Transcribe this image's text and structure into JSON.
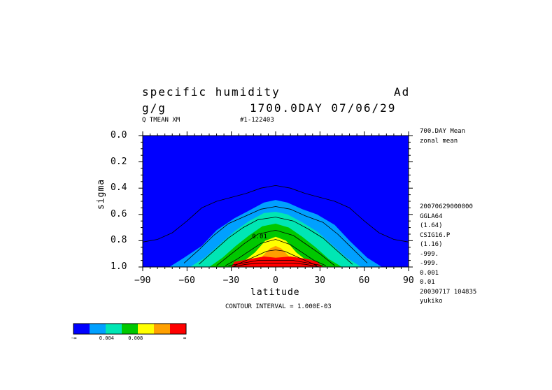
{
  "header": {
    "title_left": "specific humidity",
    "title_right": "Ad",
    "units": "g/g",
    "time_label": "1700.0DAY 07/06/29",
    "variable_label": "Q TMEAN XM",
    "run_label": "#1-122403"
  },
  "side_info": {
    "top_lines": [
      "700.DAY Mean",
      "zonal mean"
    ],
    "bottom_lines": [
      "20070629000000",
      "GGLA64",
      "(1.64)",
      "CSIG16.P",
      "(1.16)",
      "-999.",
      "-999.",
      "0.001",
      "0.01",
      "20030717 104835",
      "yukiko"
    ]
  },
  "footer": {
    "contour_interval": "CONTOUR INTERVAL = 1.000E-03"
  },
  "colorbar": {
    "colors": [
      "#0000ff",
      "#00a0ff",
      "#00e6b4",
      "#00c800",
      "#ffff00",
      "#ffa000",
      "#ff0000"
    ],
    "labels": [
      "-∞",
      "0.004",
      "0.008",
      "∞"
    ]
  },
  "chart_data": {
    "type": "contour",
    "title": "specific humidity",
    "xlabel": "latitude",
    "ylabel": "sigma",
    "xlim": [
      -90,
      90
    ],
    "ylim": [
      1.0,
      0.0
    ],
    "x_ticks": [
      -90,
      -60,
      -30,
      0,
      30,
      60,
      90
    ],
    "y_ticks": [
      0.0,
      0.2,
      0.4,
      0.6,
      0.8,
      1.0
    ],
    "x_tick_labels": [
      "−90",
      "−60",
      "−30",
      "0",
      "30",
      "60",
      "90"
    ],
    "y_tick_labels": [
      "0.0",
      "0.2",
      "0.4",
      "0.6",
      "0.8",
      "1.0"
    ],
    "contour_interval": 0.001,
    "inline_labels": [
      {
        "lat": -16,
        "sigma": 0.9,
        "text": "0.01"
      }
    ],
    "filled_levels": [
      {
        "level": 0.002,
        "color": "#00a0ff",
        "boundary": [
          [
            -90,
            1.0
          ],
          [
            -72,
            1.0
          ],
          [
            -62,
            0.93
          ],
          [
            -50,
            0.84
          ],
          [
            -40,
            0.72
          ],
          [
            -28,
            0.63
          ],
          [
            -18,
            0.57
          ],
          [
            -8,
            0.51
          ],
          [
            0,
            0.49
          ],
          [
            8,
            0.51
          ],
          [
            18,
            0.56
          ],
          [
            28,
            0.6
          ],
          [
            40,
            0.68
          ],
          [
            50,
            0.8
          ],
          [
            62,
            0.93
          ],
          [
            72,
            1.0
          ],
          [
            90,
            1.0
          ]
        ]
      },
      {
        "level": 0.004,
        "color": "#00e6b4",
        "boundary": [
          [
            -90,
            1.0
          ],
          [
            -58,
            1.0
          ],
          [
            -48,
            0.93
          ],
          [
            -38,
            0.83
          ],
          [
            -28,
            0.73
          ],
          [
            -18,
            0.65
          ],
          [
            -8,
            0.59
          ],
          [
            0,
            0.58
          ],
          [
            8,
            0.6
          ],
          [
            18,
            0.66
          ],
          [
            28,
            0.73
          ],
          [
            38,
            0.83
          ],
          [
            48,
            0.93
          ],
          [
            58,
            1.0
          ],
          [
            90,
            1.0
          ]
        ]
      },
      {
        "level": 0.006,
        "color": "#00c800",
        "boundary": [
          [
            -90,
            1.0
          ],
          [
            -45,
            1.0
          ],
          [
            -36,
            0.93
          ],
          [
            -27,
            0.84
          ],
          [
            -18,
            0.76
          ],
          [
            -9,
            0.69
          ],
          [
            0,
            0.67
          ],
          [
            9,
            0.7
          ],
          [
            18,
            0.77
          ],
          [
            27,
            0.85
          ],
          [
            36,
            0.94
          ],
          [
            45,
            1.0
          ],
          [
            90,
            1.0
          ]
        ]
      },
      {
        "level": 0.008,
        "color": "#ffff00",
        "boundary": [
          [
            -90,
            1.0
          ],
          [
            -30,
            1.0
          ],
          [
            -22,
            0.96
          ],
          [
            -14,
            0.89
          ],
          [
            -7,
            0.8
          ],
          [
            0,
            0.77
          ],
          [
            7,
            0.8
          ],
          [
            14,
            0.89
          ],
          [
            22,
            0.96
          ],
          [
            30,
            1.0
          ],
          [
            90,
            1.0
          ]
        ]
      },
      {
        "level": 0.01,
        "color": "#ffa000",
        "boundary": [
          [
            -90,
            1.0
          ],
          [
            -24,
            1.0
          ],
          [
            -18,
            0.97
          ],
          [
            -10,
            0.93
          ],
          [
            -4,
            0.86
          ],
          [
            0,
            0.84
          ],
          [
            4,
            0.86
          ],
          [
            10,
            0.93
          ],
          [
            18,
            0.97
          ],
          [
            24,
            1.0
          ],
          [
            90,
            1.0
          ]
        ]
      },
      {
        "level": 0.012,
        "color": "#ff0000",
        "boundary": [
          [
            -90,
            1.0
          ],
          [
            -30,
            1.0
          ],
          [
            -28,
            0.96
          ],
          [
            -18,
            0.94
          ],
          [
            -8,
            0.92
          ],
          [
            0,
            0.93
          ],
          [
            10,
            0.92
          ],
          [
            22,
            0.94
          ],
          [
            28,
            0.96
          ],
          [
            32,
            1.0
          ],
          [
            90,
            1.0
          ]
        ]
      }
    ],
    "line_contours": [
      [
        [
          -90,
          0.81
        ],
        [
          -80,
          0.79
        ],
        [
          -70,
          0.74
        ],
        [
          -60,
          0.65
        ],
        [
          -50,
          0.55
        ],
        [
          -40,
          0.5
        ],
        [
          -30,
          0.47
        ],
        [
          -20,
          0.44
        ],
        [
          -10,
          0.4
        ],
        [
          0,
          0.38
        ],
        [
          10,
          0.4
        ],
        [
          20,
          0.44
        ],
        [
          30,
          0.47
        ],
        [
          40,
          0.5
        ],
        [
          50,
          0.55
        ],
        [
          60,
          0.65
        ],
        [
          70,
          0.74
        ],
        [
          80,
          0.79
        ],
        [
          90,
          0.81
        ]
      ],
      [
        [
          -62,
          0.97
        ],
        [
          -52,
          0.87
        ],
        [
          -42,
          0.76
        ],
        [
          -32,
          0.67
        ],
        [
          -20,
          0.61
        ],
        [
          -10,
          0.56
        ],
        [
          0,
          0.54
        ],
        [
          10,
          0.56
        ],
        [
          20,
          0.61
        ],
        [
          32,
          0.66
        ],
        [
          42,
          0.75
        ],
        [
          52,
          0.86
        ],
        [
          62,
          0.97
        ]
      ],
      [
        [
          -52,
          0.98
        ],
        [
          -42,
          0.88
        ],
        [
          -32,
          0.78
        ],
        [
          -22,
          0.7
        ],
        [
          -12,
          0.64
        ],
        [
          0,
          0.62
        ],
        [
          12,
          0.65
        ],
        [
          22,
          0.71
        ],
        [
          32,
          0.78
        ],
        [
          42,
          0.88
        ],
        [
          52,
          0.98
        ]
      ],
      [
        [
          -40,
          0.99
        ],
        [
          -30,
          0.9
        ],
        [
          -21,
          0.82
        ],
        [
          -12,
          0.75
        ],
        [
          0,
          0.72
        ],
        [
          12,
          0.76
        ],
        [
          21,
          0.83
        ],
        [
          30,
          0.9
        ],
        [
          40,
          0.99
        ]
      ],
      [
        [
          -34,
          0.99
        ],
        [
          -26,
          0.94
        ],
        [
          -18,
          0.88
        ],
        [
          -10,
          0.82
        ],
        [
          0,
          0.79
        ],
        [
          10,
          0.83
        ],
        [
          18,
          0.89
        ],
        [
          26,
          0.95
        ],
        [
          34,
          0.99
        ]
      ],
      [
        [
          -28,
          0.99
        ],
        [
          -20,
          0.95
        ],
        [
          -12,
          0.91
        ],
        [
          -6,
          0.88
        ],
        [
          0,
          0.87
        ],
        [
          6,
          0.88
        ],
        [
          12,
          0.91
        ],
        [
          20,
          0.95
        ],
        [
          28,
          0.99
        ]
      ],
      [
        [
          -32,
          0.99
        ],
        [
          -22,
          0.97
        ],
        [
          -12,
          0.95
        ],
        [
          0,
          0.95
        ],
        [
          12,
          0.95
        ],
        [
          22,
          0.97
        ],
        [
          32,
          0.99
        ]
      ],
      [
        [
          -30,
          1.0
        ],
        [
          -20,
          0.98
        ],
        [
          -10,
          0.97
        ],
        [
          0,
          0.97
        ],
        [
          10,
          0.97
        ],
        [
          20,
          0.98
        ],
        [
          30,
          1.0
        ]
      ]
    ]
  }
}
